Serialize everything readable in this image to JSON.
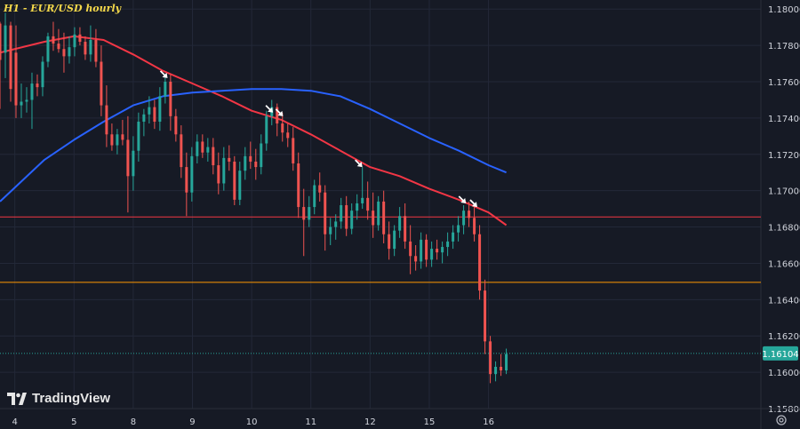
{
  "header": {
    "title": "H1 - EUR/USD hourly"
  },
  "brand": {
    "name": "TradingView",
    "logo_icon": "tradingview-logo-icon"
  },
  "toolbar": {
    "settings_icon": "gear-icon"
  },
  "colors": {
    "background": "#161a25",
    "grid": "#232838",
    "up_candle": "#26a69a",
    "down_candle": "#ef5350",
    "ma_red": "#f23645",
    "ma_blue": "#2962ff",
    "resistance_line": "#f23645",
    "support_line": "#ff9800",
    "price_line": "#26a69a",
    "text": "#d1d4dc",
    "title": "#f5d94a"
  },
  "chart_data": {
    "type": "candlestick",
    "title": "H1 - EUR/USD hourly",
    "xlabel": "",
    "ylabel": "",
    "x_range": [
      3.75,
      16.6
    ],
    "ylim": [
      1.158,
      1.1805
    ],
    "grid": true,
    "y_ticks": [
      "1.18000",
      "1.17800",
      "1.17600",
      "1.17400",
      "1.17200",
      "1.17000",
      "1.16800",
      "1.16600",
      "1.16400",
      "1.16200",
      "1.16000",
      "1.15800"
    ],
    "x_tick_labels": [
      {
        "label": "4",
        "pos": 4
      },
      {
        "label": "5",
        "pos": 5
      },
      {
        "label": "8",
        "pos": 6
      },
      {
        "label": "9",
        "pos": 7
      },
      {
        "label": "10",
        "pos": 8
      },
      {
        "label": "11",
        "pos": 9
      },
      {
        "label": "12",
        "pos": 10
      },
      {
        "label": "15",
        "pos": 11
      },
      {
        "label": "16",
        "pos": 12
      }
    ],
    "last_price": {
      "value": 1.16104,
      "label": "1.16104"
    },
    "horizontal_lines": [
      {
        "name": "resistance",
        "value": 1.16855
      },
      {
        "name": "support",
        "value": 1.16495
      }
    ],
    "arrows": [
      {
        "x": 6.58,
        "y": 1.1762
      },
      {
        "x": 8.36,
        "y": 1.1743
      },
      {
        "x": 8.53,
        "y": 1.1741
      },
      {
        "x": 9.87,
        "y": 1.1713
      },
      {
        "x": 11.62,
        "y": 1.1693
      },
      {
        "x": 11.81,
        "y": 1.1691
      }
    ],
    "series": [
      {
        "name": "",
        "style": "line",
        "color": "#f23645",
        "points": [
          [
            3.75,
            1.1776
          ],
          [
            4.5,
            1.1782
          ],
          [
            5.0,
            1.1785
          ],
          [
            5.5,
            1.1783
          ],
          [
            6.0,
            1.1775
          ],
          [
            6.5,
            1.1766
          ],
          [
            7.0,
            1.1759
          ],
          [
            7.5,
            1.1752
          ],
          [
            8.0,
            1.1744
          ],
          [
            8.5,
            1.1739
          ],
          [
            9.0,
            1.1731
          ],
          [
            9.5,
            1.1722
          ],
          [
            10.0,
            1.1713
          ],
          [
            10.5,
            1.1708
          ],
          [
            11.0,
            1.1701
          ],
          [
            11.5,
            1.1695
          ],
          [
            12.0,
            1.1688
          ],
          [
            12.3,
            1.1681
          ]
        ]
      },
      {
        "name": "",
        "style": "line",
        "color": "#2962ff",
        "points": [
          [
            3.75,
            1.1694
          ],
          [
            4.5,
            1.1717
          ],
          [
            5.0,
            1.1728
          ],
          [
            5.5,
            1.1738
          ],
          [
            6.0,
            1.1747
          ],
          [
            6.5,
            1.1752
          ],
          [
            7.0,
            1.1754
          ],
          [
            7.5,
            1.1755
          ],
          [
            8.0,
            1.1756
          ],
          [
            8.5,
            1.1756
          ],
          [
            9.0,
            1.1755
          ],
          [
            9.5,
            1.1752
          ],
          [
            10.0,
            1.1745
          ],
          [
            10.5,
            1.1737
          ],
          [
            11.0,
            1.1729
          ],
          [
            11.5,
            1.1722
          ],
          [
            12.0,
            1.1714
          ],
          [
            12.3,
            1.171
          ]
        ]
      }
    ],
    "candles": [
      [
        3.75,
        1.1792,
        1.1793,
        1.1745,
        1.1772
      ],
      [
        3.84,
        1.1776,
        1.1798,
        1.1762,
        1.1791
      ],
      [
        3.93,
        1.1791,
        1.1793,
        1.1749,
        1.1756
      ],
      [
        4.02,
        1.1776,
        1.1791,
        1.174,
        1.1747
      ],
      [
        4.11,
        1.1747,
        1.1759,
        1.174,
        1.1749
      ],
      [
        4.2,
        1.1749,
        1.1757,
        1.1743,
        1.175
      ],
      [
        4.29,
        1.175,
        1.1765,
        1.1734,
        1.1759
      ],
      [
        4.38,
        1.1759,
        1.1764,
        1.1752,
        1.1757
      ],
      [
        4.47,
        1.1757,
        1.1774,
        1.1752,
        1.1771
      ],
      [
        4.56,
        1.1771,
        1.1787,
        1.1768,
        1.1785
      ],
      [
        4.65,
        1.1785,
        1.1793,
        1.1777,
        1.1781
      ],
      [
        4.74,
        1.1781,
        1.1789,
        1.1776,
        1.1778
      ],
      [
        4.83,
        1.1778,
        1.1787,
        1.1765,
        1.1774
      ],
      [
        4.92,
        1.1774,
        1.1785,
        1.177,
        1.1779
      ],
      [
        5.01,
        1.1779,
        1.179,
        1.1774,
        1.1786
      ],
      [
        5.1,
        1.1786,
        1.179,
        1.178,
        1.1782
      ],
      [
        5.19,
        1.1782,
        1.1785,
        1.1772,
        1.1775
      ],
      [
        5.28,
        1.1775,
        1.1791,
        1.1771,
        1.1783
      ],
      [
        5.37,
        1.1783,
        1.1789,
        1.1768,
        1.1771
      ],
      [
        5.46,
        1.1771,
        1.178,
        1.1741,
        1.1747
      ],
      [
        5.55,
        1.1747,
        1.1758,
        1.1724,
        1.1731
      ],
      [
        5.64,
        1.1731,
        1.1737,
        1.1722,
        1.1725
      ],
      [
        5.73,
        1.1725,
        1.1734,
        1.172,
        1.1731
      ],
      [
        5.82,
        1.1731,
        1.1739,
        1.1725,
        1.1728
      ],
      [
        5.91,
        1.1728,
        1.1741,
        1.1688,
        1.1708
      ],
      [
        6.0,
        1.1708,
        1.173,
        1.17,
        1.1722
      ],
      [
        6.09,
        1.1722,
        1.1743,
        1.1716,
        1.1738
      ],
      [
        6.18,
        1.1738,
        1.1745,
        1.173,
        1.1742
      ],
      [
        6.27,
        1.1742,
        1.1752,
        1.1737,
        1.1746
      ],
      [
        6.36,
        1.1746,
        1.175,
        1.1734,
        1.1738
      ],
      [
        6.45,
        1.1738,
        1.1757,
        1.1733,
        1.1752
      ],
      [
        6.54,
        1.1752,
        1.1764,
        1.1748,
        1.176
      ],
      [
        6.63,
        1.176,
        1.1764,
        1.1733,
        1.1741
      ],
      [
        6.72,
        1.1741,
        1.1745,
        1.1727,
        1.1731
      ],
      [
        6.81,
        1.1731,
        1.1736,
        1.1707,
        1.1713
      ],
      [
        6.9,
        1.1713,
        1.1721,
        1.1686,
        1.1699
      ],
      [
        6.99,
        1.1699,
        1.1724,
        1.1694,
        1.1719
      ],
      [
        7.08,
        1.1719,
        1.1731,
        1.1715,
        1.1727
      ],
      [
        7.17,
        1.1727,
        1.1731,
        1.1718,
        1.1721
      ],
      [
        7.26,
        1.1721,
        1.1729,
        1.1716,
        1.1724
      ],
      [
        7.35,
        1.1724,
        1.1729,
        1.1709,
        1.1714
      ],
      [
        7.44,
        1.1714,
        1.1721,
        1.1698,
        1.1704
      ],
      [
        7.53,
        1.1704,
        1.1724,
        1.17,
        1.1718
      ],
      [
        7.62,
        1.1718,
        1.1725,
        1.1711,
        1.1716
      ],
      [
        7.71,
        1.1716,
        1.1719,
        1.1692,
        1.1695
      ],
      [
        7.8,
        1.1695,
        1.1716,
        1.1692,
        1.1711
      ],
      [
        7.89,
        1.1711,
        1.1724,
        1.1706,
        1.1719
      ],
      [
        7.98,
        1.1719,
        1.1727,
        1.1712,
        1.1716
      ],
      [
        8.07,
        1.1716,
        1.1723,
        1.1706,
        1.1713
      ],
      [
        8.16,
        1.1713,
        1.1731,
        1.1709,
        1.1726
      ],
      [
        8.25,
        1.1726,
        1.1744,
        1.1722,
        1.1741
      ],
      [
        8.34,
        1.1741,
        1.175,
        1.1736,
        1.1746
      ],
      [
        8.43,
        1.1746,
        1.1748,
        1.173,
        1.1737
      ],
      [
        8.52,
        1.1737,
        1.1743,
        1.1727,
        1.1732
      ],
      [
        8.61,
        1.1732,
        1.1737,
        1.1724,
        1.1729
      ],
      [
        8.7,
        1.1729,
        1.1735,
        1.1711,
        1.1715
      ],
      [
        8.79,
        1.1715,
        1.1721,
        1.1685,
        1.1691
      ],
      [
        8.88,
        1.1691,
        1.1701,
        1.1664,
        1.1684
      ],
      [
        8.97,
        1.1684,
        1.1697,
        1.168,
        1.1691
      ],
      [
        9.06,
        1.1691,
        1.1706,
        1.1687,
        1.1703
      ],
      [
        9.15,
        1.1703,
        1.171,
        1.1694,
        1.1699
      ],
      [
        9.24,
        1.1699,
        1.1703,
        1.1667,
        1.1676
      ],
      [
        9.33,
        1.1676,
        1.1685,
        1.167,
        1.168
      ],
      [
        9.42,
        1.168,
        1.1687,
        1.1673,
        1.1683
      ],
      [
        9.51,
        1.1683,
        1.1696,
        1.1679,
        1.1692
      ],
      [
        9.6,
        1.1692,
        1.1697,
        1.1675,
        1.1679
      ],
      [
        9.69,
        1.1679,
        1.1693,
        1.1676,
        1.1689
      ],
      [
        9.78,
        1.1689,
        1.1698,
        1.1684,
        1.1693
      ],
      [
        9.87,
        1.1693,
        1.1713,
        1.169,
        1.1696
      ],
      [
        9.96,
        1.1696,
        1.1705,
        1.1684,
        1.1689
      ],
      [
        10.05,
        1.1689,
        1.1699,
        1.1674,
        1.1681
      ],
      [
        10.14,
        1.1681,
        1.1697,
        1.1678,
        1.1694
      ],
      [
        10.23,
        1.1694,
        1.17,
        1.1671,
        1.1676
      ],
      [
        10.32,
        1.1676,
        1.1683,
        1.1662,
        1.1668
      ],
      [
        10.41,
        1.1668,
        1.1681,
        1.1664,
        1.1678
      ],
      [
        10.5,
        1.1678,
        1.1691,
        1.1674,
        1.1686
      ],
      [
        10.59,
        1.1686,
        1.1693,
        1.1668,
        1.1672
      ],
      [
        10.68,
        1.1672,
        1.1681,
        1.1654,
        1.1664
      ],
      [
        10.77,
        1.1664,
        1.167,
        1.1656,
        1.1661
      ],
      [
        10.86,
        1.1661,
        1.1677,
        1.1657,
        1.1673
      ],
      [
        10.95,
        1.1673,
        1.1676,
        1.1658,
        1.1662
      ],
      [
        11.04,
        1.1662,
        1.1672,
        1.1658,
        1.1668
      ],
      [
        11.13,
        1.1668,
        1.1673,
        1.1662,
        1.1666
      ],
      [
        11.22,
        1.1666,
        1.1672,
        1.166,
        1.1669
      ],
      [
        11.31,
        1.1669,
        1.1677,
        1.1664,
        1.1672
      ],
      [
        11.4,
        1.1672,
        1.1681,
        1.1668,
        1.1677
      ],
      [
        11.49,
        1.1677,
        1.1686,
        1.1672,
        1.1681
      ],
      [
        11.58,
        1.1681,
        1.1692,
        1.1676,
        1.1689
      ],
      [
        11.67,
        1.1689,
        1.1694,
        1.168,
        1.1685
      ],
      [
        11.76,
        1.1685,
        1.1691,
        1.1672,
        1.1676
      ],
      [
        11.85,
        1.1676,
        1.1681,
        1.164,
        1.1645
      ],
      [
        11.94,
        1.1645,
        1.1651,
        1.161,
        1.1617
      ],
      [
        12.03,
        1.1617,
        1.162,
        1.1594,
        1.1599
      ],
      [
        12.12,
        1.1599,
        1.1606,
        1.1595,
        1.1603
      ],
      [
        12.21,
        1.1603,
        1.161,
        1.1598,
        1.1601
      ],
      [
        12.3,
        1.1601,
        1.1613,
        1.1599,
        1.161
      ]
    ]
  }
}
